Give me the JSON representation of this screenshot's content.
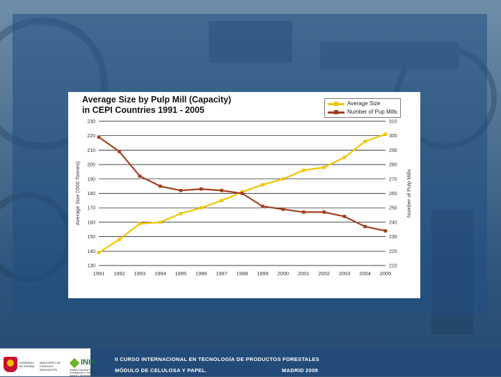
{
  "colors": {
    "avg_size": "#f2c500",
    "pulp_mills": "#a0401e",
    "grid": "#000000"
  },
  "chart_data": {
    "type": "line",
    "title_line1": "Average Size by Pulp Mill (Capacity)",
    "title_line2": "in CEPI Countries 1991 - 2005",
    "x": [
      "1991",
      "1992",
      "1993",
      "1994",
      "1995",
      "1996",
      "1997",
      "1998",
      "1999",
      "2000",
      "2001",
      "2002",
      "2003",
      "2004",
      "2005"
    ],
    "series": [
      {
        "name": "Average Size",
        "axis": "left",
        "values": [
          139,
          148,
          159,
          160,
          166,
          170,
          175,
          181,
          186,
          190,
          196,
          198,
          205,
          216,
          221
        ]
      },
      {
        "name": "Number of Pup Mills",
        "axis": "right",
        "values": [
          299,
          289,
          272,
          265,
          262,
          263,
          262,
          260,
          251,
          249,
          247,
          247,
          244,
          237,
          234
        ]
      }
    ],
    "ylabel_left": "Average Size ('000 Tonnes)",
    "ylabel_right": "Number of Pulp Mills",
    "ylim_left": [
      130,
      230
    ],
    "ylim_right": [
      210,
      310
    ],
    "yticks_left": [
      "130",
      "140",
      "150",
      "160",
      "170",
      "180",
      "190",
      "200",
      "210",
      "220",
      "230"
    ],
    "yticks_right": [
      "210",
      "220",
      "230",
      "240",
      "250",
      "260",
      "270",
      "280",
      "290",
      "300",
      "310"
    ],
    "legend": "top-right",
    "grid": true
  },
  "footer": {
    "course_line": "II CURSO INTERNACIONAL EN TECNOLOGÍA DE PRODUCTOS FORESTALES",
    "module_line": "MÓDULO DE CELULOSA Y PAPEL.",
    "place_date": "MADRID 2008",
    "gov_label_1": "GOBIERNO DE ESPAÑA",
    "gov_label_2": "MINISTERIO DE CIENCIA E INNOVACIÓN",
    "inia_label": "INIA",
    "inia_sub": "Instituto Nacional de Investigación y Tecnología Agraria y Alimentaria"
  }
}
